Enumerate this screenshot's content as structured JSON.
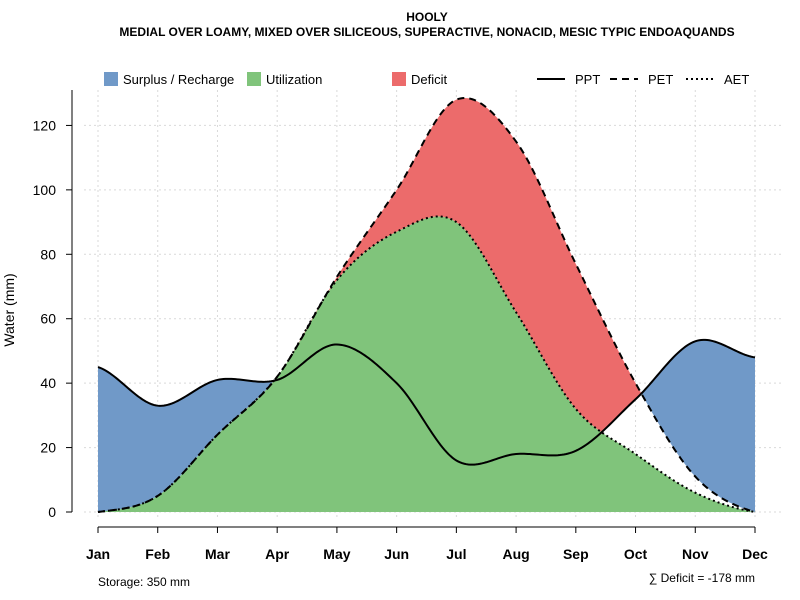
{
  "chart_data": {
    "type": "area",
    "title": "HOOLY",
    "subtitle": "MEDIAL OVER LOAMY, MIXED OVER SILICEOUS, SUPERACTIVE, NONACID, MESIC TYPIC ENDOAQUANDS",
    "ylabel": "Water (mm)",
    "xlabel": "",
    "ylim": [
      0,
      131
    ],
    "yticks": [
      0,
      20,
      40,
      60,
      80,
      100,
      120
    ],
    "grid": true,
    "categories": [
      "Jan",
      "Feb",
      "Mar",
      "Apr",
      "May",
      "Jun",
      "Jul",
      "Aug",
      "Sep",
      "Oct",
      "Nov",
      "Dec"
    ],
    "series": [
      {
        "name": "PPT",
        "style": "solid",
        "values": [
          45,
          33,
          41,
          41,
          52,
          40,
          16,
          18,
          19,
          35,
          53,
          48
        ]
      },
      {
        "name": "PET",
        "style": "dashed",
        "values": [
          0,
          5,
          24,
          42,
          73,
          100,
          128,
          115,
          77,
          40,
          11,
          0
        ]
      },
      {
        "name": "AET",
        "style": "dotted",
        "values": [
          0,
          5,
          24,
          42,
          72,
          87,
          90,
          62,
          32,
          18,
          6,
          0
        ]
      }
    ],
    "regions": [
      {
        "name": "Surplus / Recharge",
        "color": "#7099c8"
      },
      {
        "name": "Utilization",
        "color": "#80c47b"
      },
      {
        "name": "Deficit",
        "color": "#ec6b6b"
      }
    ],
    "legend": [
      "Surplus / Recharge",
      "Utilization",
      "Deficit",
      "PPT",
      "PET",
      "AET"
    ],
    "legend_position": "top",
    "annotations": {
      "storage": "Storage: 350 mm",
      "deficit": "∑ Deficit = -178 mm"
    }
  }
}
